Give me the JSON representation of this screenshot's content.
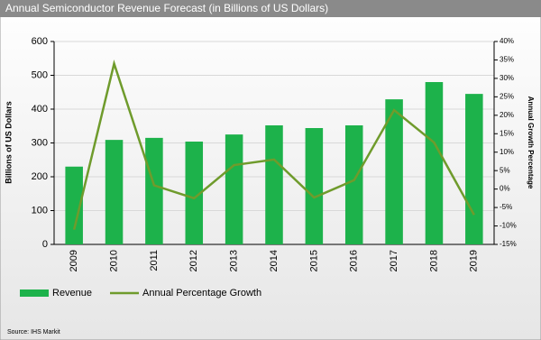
{
  "chart_data": {
    "type": "combo",
    "title": "Annual Semiconductor Revenue Forecast (in Billions of US Dollars)",
    "categories": [
      "2009",
      "2010",
      "2011",
      "2012",
      "2013",
      "2014",
      "2015",
      "2016",
      "2017",
      "2018",
      "2019"
    ],
    "series": [
      {
        "name": "Revenue",
        "type": "bar",
        "color": "#1db24b",
        "values": [
          230,
          309,
          315,
          304,
          325,
          352,
          344,
          352,
          429,
          480,
          445
        ]
      },
      {
        "name": "Annual Percentage Growth",
        "type": "line",
        "axis": "y2",
        "color": "#6f9b2c",
        "values": [
          -11,
          34,
          1,
          -2.5,
          6.5,
          8,
          -2.3,
          2.4,
          21.4,
          12.6,
          -7
        ]
      }
    ],
    "ylabel": "Billions of US Dollars",
    "y2label": "Annual Growth Percentage",
    "ylim": [
      0,
      600
    ],
    "yticks": [
      0,
      100,
      200,
      300,
      400,
      500,
      600
    ],
    "y2lim": [
      -15,
      40
    ],
    "y2ticks": [
      {
        "value": -15,
        "label": "-15%"
      },
      {
        "value": -10,
        "label": "-10%"
      },
      {
        "value": -5,
        "label": "-5%"
      },
      {
        "value": 0,
        "label": "0%"
      },
      {
        "value": 5,
        "label": "5%"
      },
      {
        "value": 10,
        "label": "10%"
      },
      {
        "value": 15,
        "label": "15%"
      },
      {
        "value": 20,
        "label": "20%"
      },
      {
        "value": 25,
        "label": "25%"
      },
      {
        "value": 30,
        "label": "30%"
      },
      {
        "value": 35,
        "label": "35%"
      },
      {
        "value": 40,
        "label": "40%"
      }
    ],
    "grid": true,
    "legend": "bottom-left",
    "source": "Source: IHS Markit"
  }
}
